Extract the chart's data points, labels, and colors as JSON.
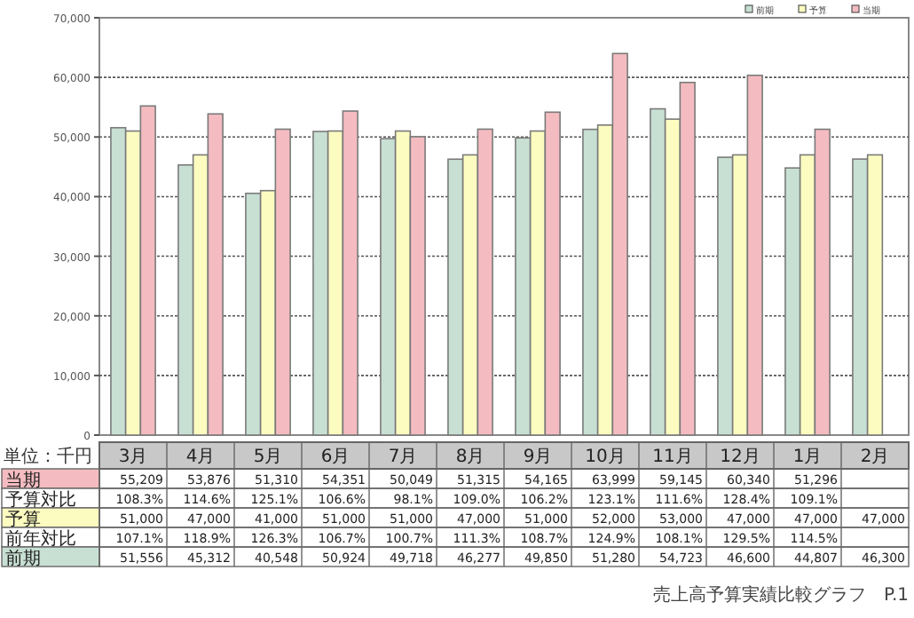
{
  "chart_data": {
    "type": "bar",
    "categories": [
      "3月",
      "4月",
      "5月",
      "6月",
      "7月",
      "8月",
      "9月",
      "10月",
      "11月",
      "12月",
      "1月",
      "2月"
    ],
    "series": [
      {
        "name": "前期",
        "color": "#c8e0d4",
        "values": [
          51556,
          45312,
          40548,
          50924,
          49718,
          46277,
          49850,
          51280,
          54723,
          46600,
          44807,
          46300
        ],
        "value_labels": [
          "51,556",
          "45,312",
          "40,548",
          "50,924",
          "49,718",
          "46,277",
          "49,850",
          "51,280",
          "54,723",
          "46,600",
          "44,807",
          "46,300"
        ]
      },
      {
        "name": "予算",
        "color": "#fdfcc0",
        "values": [
          51000,
          47000,
          41000,
          51000,
          51000,
          47000,
          51000,
          52000,
          53000,
          47000,
          47000,
          47000
        ],
        "value_labels": [
          "51,000",
          "47,000",
          "41,000",
          "51,000",
          "51,000",
          "47,000",
          "51,000",
          "52,000",
          "53,000",
          "47,000",
          "47,000",
          "47,000"
        ]
      },
      {
        "name": "当期",
        "color": "#f4bcc0",
        "values": [
          55209,
          53876,
          51310,
          54351,
          50049,
          51315,
          54165,
          63999,
          59145,
          60340,
          51296,
          null
        ],
        "value_labels": [
          "55,209",
          "53,876",
          "51,310",
          "54,351",
          "50,049",
          "51,315",
          "54,165",
          "63,999",
          "59,145",
          "60,340",
          "51,296",
          null
        ]
      }
    ],
    "ylim": [
      0,
      70000
    ],
    "yticks": [
      0,
      {
        "value": 10000,
        "label": "10,000"
      },
      {
        "value": 20000,
        "label": "20,000"
      },
      {
        "value": 30000,
        "label": "30,000"
      },
      {
        "value": 40000,
        "label": "40,000"
      },
      {
        "value": 50000,
        "label": "50,000"
      },
      {
        "value": 60000,
        "label": "60,000"
      },
      {
        "value": 70000,
        "label": "70,000"
      }
    ],
    "grid": "y",
    "legend": "top right",
    "annotations": [
      "単位：千円",
      "予算対比",
      "108.3%",
      "114.6%",
      "125.1%",
      "106.6%",
      "98.1%",
      "109.0%",
      "106.2%",
      "123.1%",
      "111.6%",
      "128.4%",
      "109.1%",
      "前年対比",
      "107.1%",
      "118.9%",
      "126.3%",
      "106.7%",
      "100.7%",
      "111.3%",
      "108.7%",
      "124.9%",
      "108.1%",
      "129.5%",
      "114.5%",
      "売上高予算実績比較グラフ　P.1"
    ]
  }
}
